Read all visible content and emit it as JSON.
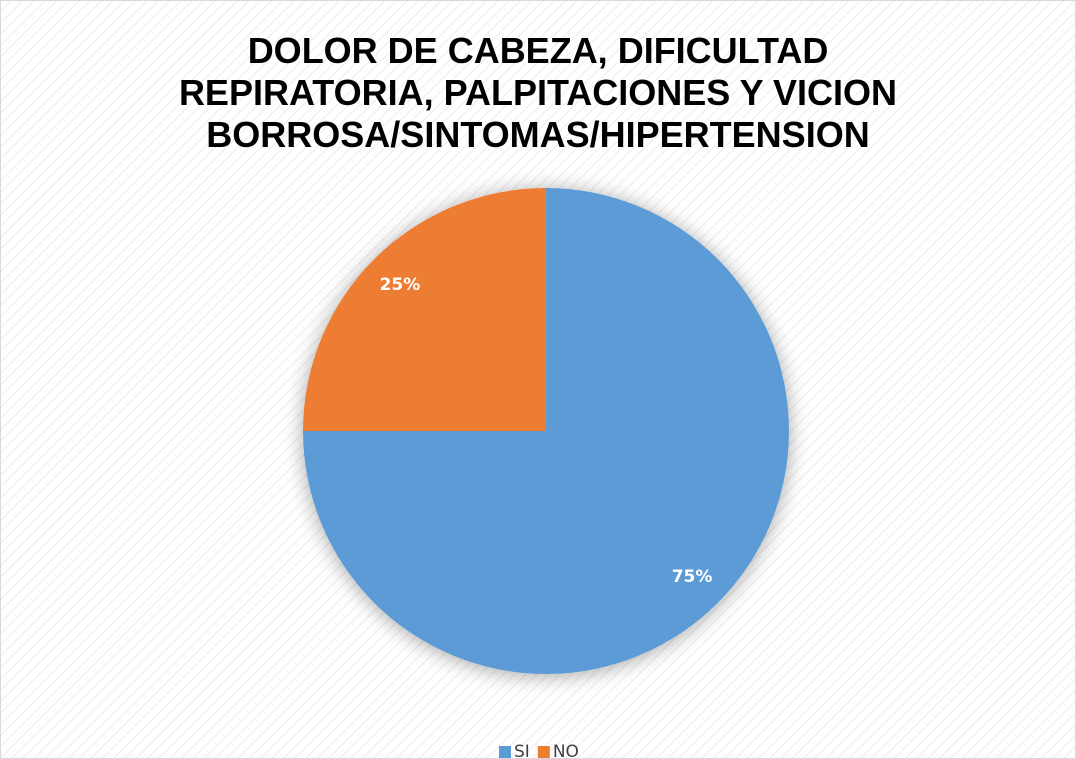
{
  "chart_data": {
    "type": "pie",
    "title": "DOLOR DE CABEZA, DIFICULTAD REPIRATORIA, PALPITACIONES Y VICION BORROSA/SINTOMAS/HIPERTENSION",
    "categories": [
      "SI",
      "NO"
    ],
    "values": [
      75,
      25
    ],
    "value_labels": [
      "75%",
      "25%"
    ],
    "colors": [
      "#5b9bd5",
      "#ed7d31"
    ],
    "legend": "bottom"
  }
}
